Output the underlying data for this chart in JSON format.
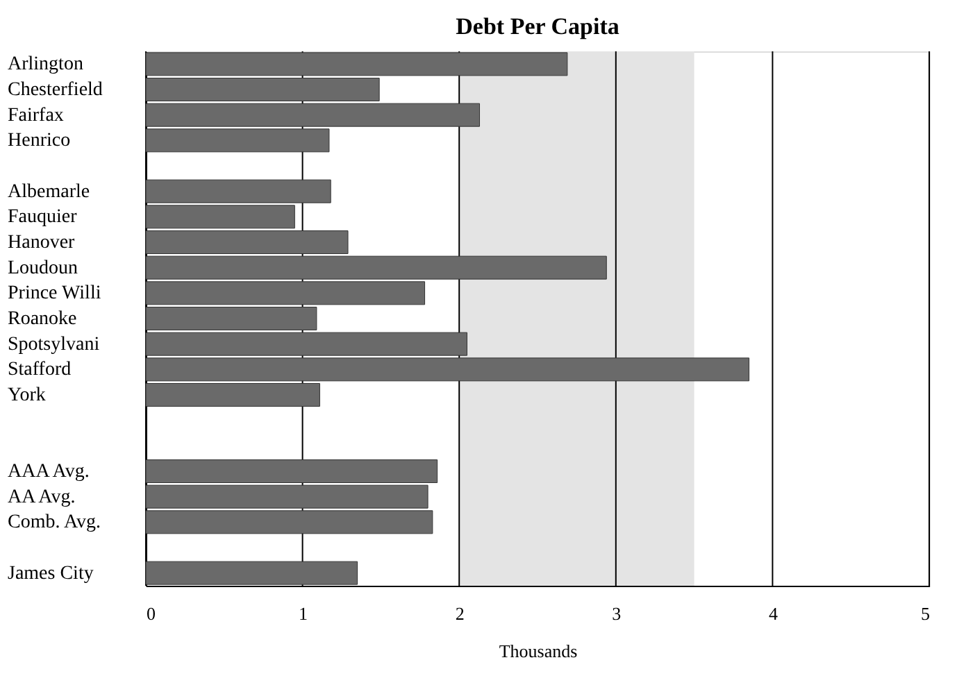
{
  "chart_data": {
    "type": "bar",
    "orientation": "horizontal",
    "title": "Debt Per Capita",
    "xlabel": "Thousands",
    "categories": [
      "Arlington",
      "Chesterfield",
      "Fairfax",
      "Henrico",
      null,
      "Albemarle",
      "Fauquier",
      "Hanover",
      "Loudoun",
      "Prince Willi",
      "Roanoke",
      "Spotsylvani",
      "Stafford",
      "York",
      null,
      null,
      "AAA Avg.",
      "AA Avg.",
      "Comb. Avg.",
      null,
      "James City"
    ],
    "values": [
      2.69,
      1.49,
      2.13,
      1.17,
      null,
      1.18,
      0.95,
      1.29,
      2.94,
      1.78,
      1.09,
      2.05,
      3.85,
      1.11,
      null,
      null,
      1.86,
      1.8,
      1.83,
      null,
      1.35
    ],
    "color": "#6a6a6a",
    "xlim": [
      0,
      5
    ],
    "xticks": [
      0,
      1,
      2,
      3,
      4,
      5
    ],
    "grid": "x",
    "bands": [
      {
        "axis": "x",
        "from": 2,
        "to": 3.5,
        "color": "#e4e4e4"
      }
    ]
  }
}
